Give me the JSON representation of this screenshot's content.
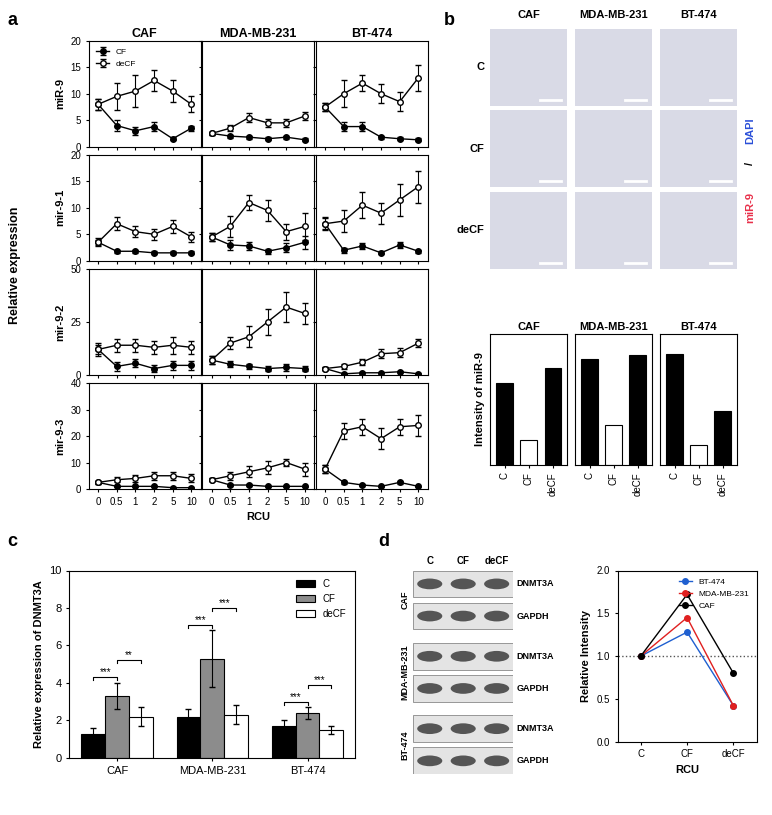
{
  "panel_labels": [
    "a",
    "b",
    "c",
    "d"
  ],
  "panel_a": {
    "ylabel": "Relative expression"
  },
  "images": {
    "columns": [
      "CAF",
      "MDA-MB-231",
      "BT-474"
    ],
    "rows": [
      "C",
      "CF",
      "deCF"
    ],
    "stain_labels": [
      {
        "text": "miR-9",
        "color": "#e8304a"
      },
      {
        "text": "/",
        "color": "#000000"
      },
      {
        "text": "DAPI",
        "color": "#2a4fd8"
      }
    ]
  },
  "blots": {
    "columns": [
      "C",
      "CF",
      "deCF"
    ],
    "rows": [
      "CAF",
      "MDA-MB-231",
      "BT-474"
    ],
    "bands": [
      "DNMT3A",
      "GAPDH"
    ]
  },
  "chart_data": [
    {
      "type": "line",
      "title": "CAF",
      "ylabel": "miR-9",
      "categories": [
        "0",
        "0.5",
        "1",
        "2",
        "5",
        "10"
      ],
      "ylim": [
        0,
        20
      ],
      "yticks": [
        0,
        5,
        10,
        15,
        20
      ],
      "tick_labels": "y",
      "legend": "upper left",
      "series": [
        {
          "name": "CF",
          "color": "#000000",
          "marker": "circle",
          "values": [
            8,
            4,
            3,
            3.8,
            1.5,
            3.5
          ],
          "errors": [
            1,
            1,
            0.8,
            0.8,
            0.3,
            0.5
          ]
        },
        {
          "name": "deCF",
          "color": "#000000",
          "marker": "open circle",
          "values": [
            8,
            9.5,
            10.5,
            12.5,
            10.5,
            8
          ],
          "errors": [
            1,
            2.5,
            3,
            2,
            2,
            1.5
          ]
        }
      ]
    },
    {
      "type": "line",
      "title": "MDA-MB-231",
      "categories": [
        "0",
        "0.5",
        "1",
        "2",
        "5",
        "10"
      ],
      "ylim": [
        0,
        20
      ],
      "yticks": [
        0,
        5,
        10,
        15,
        20
      ],
      "tick_labels": false,
      "series": [
        {
          "name": "CF",
          "color": "#000000",
          "marker": "circle",
          "values": [
            2.5,
            2,
            1.8,
            1.5,
            1.8,
            1.3
          ],
          "errors": [
            0.3,
            0.3,
            0.3,
            0.3,
            0.3,
            0.3
          ]
        },
        {
          "name": "deCF",
          "color": "#000000",
          "marker": "open circle",
          "values": [
            2.5,
            3.5,
            5.5,
            4.5,
            4.5,
            5.8
          ],
          "errors": [
            0.3,
            0.6,
            0.8,
            0.8,
            0.8,
            0.8
          ]
        }
      ]
    },
    {
      "type": "line",
      "title": "BT-474",
      "categories": [
        "0",
        "0.5",
        "1",
        "2",
        "5",
        "10"
      ],
      "ylim": [
        0,
        20
      ],
      "yticks": [
        0,
        5,
        10,
        15,
        20
      ],
      "tick_labels": false,
      "series": [
        {
          "name": "CF",
          "color": "#000000",
          "marker": "circle",
          "values": [
            7.5,
            3.8,
            3.8,
            1.8,
            1.5,
            1.3
          ],
          "errors": [
            0.8,
            0.8,
            0.8,
            0.3,
            0.3,
            0.3
          ]
        },
        {
          "name": "deCF",
          "color": "#000000",
          "marker": "open circle",
          "values": [
            7.5,
            10,
            12,
            10,
            8.5,
            13
          ],
          "errors": [
            0.8,
            2.5,
            1.5,
            1.8,
            1.8,
            2.5
          ]
        }
      ]
    },
    {
      "type": "line",
      "ylabel": "mir-9-1",
      "categories": [
        "0",
        "0.5",
        "1",
        "2",
        "5",
        "10"
      ],
      "ylim": [
        0,
        20
      ],
      "yticks": [
        0,
        5,
        10,
        15,
        20
      ],
      "tick_labels": "y",
      "series": [
        {
          "name": "CF",
          "color": "#000000",
          "marker": "circle",
          "values": [
            3.5,
            1.8,
            1.8,
            1.5,
            1.5,
            1.5
          ],
          "errors": [
            0.5,
            0.3,
            0.3,
            0.3,
            0.3,
            0.3
          ]
        },
        {
          "name": "deCF",
          "color": "#000000",
          "marker": "open circle",
          "values": [
            3.5,
            7,
            5.5,
            5,
            6.5,
            4.5
          ],
          "errors": [
            0.8,
            1.2,
            1.0,
            1.0,
            1.2,
            1.0
          ]
        }
      ]
    },
    {
      "type": "line",
      "categories": [
        "0",
        "0.5",
        "1",
        "2",
        "5",
        "10"
      ],
      "ylim": [
        0,
        20
      ],
      "yticks": [
        0,
        5,
        10,
        15,
        20
      ],
      "tick_labels": false,
      "series": [
        {
          "name": "CF",
          "color": "#000000",
          "marker": "circle",
          "values": [
            4.5,
            3,
            2.8,
            1.8,
            2.5,
            3.5
          ],
          "errors": [
            0.8,
            1,
            0.8,
            0.5,
            0.8,
            1.2
          ]
        },
        {
          "name": "deCF",
          "color": "#000000",
          "marker": "open circle",
          "values": [
            4.5,
            6.5,
            11,
            9.5,
            5.5,
            6.5
          ],
          "errors": [
            0.8,
            2,
            1.5,
            2,
            1.5,
            2.5
          ]
        }
      ]
    },
    {
      "type": "line",
      "categories": [
        "0",
        "0.5",
        "1",
        "2",
        "5",
        "10"
      ],
      "ylim": [
        0,
        20
      ],
      "yticks": [
        0,
        5,
        10,
        15,
        20
      ],
      "tick_labels": false,
      "series": [
        {
          "name": "CF",
          "color": "#000000",
          "marker": "circle",
          "values": [
            7,
            2,
            2.8,
            1.5,
            3,
            1.8
          ],
          "errors": [
            1,
            0.5,
            0.5,
            0.3,
            0.5,
            0.3
          ]
        },
        {
          "name": "deCF",
          "color": "#000000",
          "marker": "open circle",
          "values": [
            7,
            7.5,
            10.5,
            9,
            11.5,
            14
          ],
          "errors": [
            1.2,
            2,
            2.5,
            2,
            3,
            3
          ]
        }
      ]
    },
    {
      "type": "line",
      "ylabel": "mir-9-2",
      "categories": [
        "0",
        "0.5",
        "1",
        "2",
        "5",
        "10"
      ],
      "ylim": [
        0,
        50
      ],
      "yticks": [
        0,
        25,
        50
      ],
      "tick_labels": "y",
      "series": [
        {
          "name": "CF",
          "color": "#000000",
          "marker": "circle",
          "values": [
            12,
            4,
            5.5,
            3,
            4.5,
            4.5
          ],
          "errors": [
            2,
            2,
            2,
            1.5,
            2,
            2
          ]
        },
        {
          "name": "deCF",
          "color": "#000000",
          "marker": "open circle",
          "values": [
            12,
            14,
            14,
            13,
            14,
            13
          ],
          "errors": [
            3,
            3,
            3,
            3,
            4,
            3
          ]
        }
      ]
    },
    {
      "type": "line",
      "categories": [
        "0",
        "0.5",
        "1",
        "2",
        "5",
        "10"
      ],
      "ylim": [
        0,
        50
      ],
      "yticks": [
        0,
        25,
        50
      ],
      "tick_labels": false,
      "series": [
        {
          "name": "CF",
          "color": "#000000",
          "marker": "circle",
          "values": [
            7,
            5,
            4,
            3,
            3.5,
            3
          ],
          "errors": [
            2,
            1.5,
            1,
            1,
            1.5,
            1
          ]
        },
        {
          "name": "deCF",
          "color": "#000000",
          "marker": "open circle",
          "values": [
            7,
            15,
            18,
            25,
            32,
            29
          ],
          "errors": [
            2,
            3,
            5,
            6,
            7,
            5
          ]
        }
      ]
    },
    {
      "type": "line",
      "categories": [
        "0",
        "0.5",
        "1",
        "2",
        "5",
        "10"
      ],
      "ylim": [
        0,
        50
      ],
      "yticks": [
        0,
        25,
        50
      ],
      "tick_labels": false,
      "series": [
        {
          "name": "CF",
          "color": "#000000",
          "marker": "circle",
          "values": [
            3,
            0.5,
            1,
            1,
            1.5,
            0.5
          ],
          "errors": [
            0.5,
            0.3,
            0.3,
            0.3,
            0.3,
            0.3
          ]
        },
        {
          "name": "deCF",
          "color": "#000000",
          "marker": "open circle",
          "values": [
            3,
            4,
            6,
            10,
            10.5,
            15
          ],
          "errors": [
            0.5,
            1,
            1.5,
            2,
            2,
            2
          ]
        }
      ]
    },
    {
      "type": "line",
      "ylabel": "mir-9-3",
      "categories": [
        "0",
        "0.5",
        "1",
        "2",
        "5",
        "10"
      ],
      "ylim": [
        0,
        40
      ],
      "yticks": [
        0,
        10,
        20,
        30,
        40
      ],
      "tick_labels": true,
      "series": [
        {
          "name": "CF",
          "color": "#000000",
          "marker": "circle",
          "values": [
            2.5,
            1,
            1,
            1,
            0.5,
            0.5
          ],
          "errors": [
            0.5,
            0.3,
            0.3,
            0.3,
            0.2,
            0.2
          ]
        },
        {
          "name": "deCF",
          "color": "#000000",
          "marker": "open circle",
          "values": [
            2.5,
            3.5,
            4,
            5,
            5,
            4
          ],
          "errors": [
            0.5,
            1,
            1.2,
            1.5,
            1.5,
            1.5
          ]
        }
      ]
    },
    {
      "type": "line",
      "xlabel": "RCU",
      "categories": [
        "0",
        "0.5",
        "1",
        "2",
        "5",
        "10"
      ],
      "ylim": [
        0,
        40
      ],
      "yticks": [
        0,
        10,
        20,
        30,
        40
      ],
      "tick_labels": "x",
      "series": [
        {
          "name": "CF",
          "color": "#000000",
          "marker": "circle",
          "values": [
            3.5,
            1.5,
            1.5,
            1,
            1,
            1
          ],
          "errors": [
            0.5,
            0.3,
            0.3,
            0.3,
            0.3,
            0.3
          ]
        },
        {
          "name": "deCF",
          "color": "#000000",
          "marker": "open circle",
          "values": [
            3.5,
            5,
            6.5,
            8,
            10,
            7.5
          ],
          "errors": [
            0.5,
            1.5,
            2,
            2.5,
            1.5,
            2.5
          ]
        }
      ]
    },
    {
      "type": "line",
      "categories": [
        "0",
        "0.5",
        "1",
        "2",
        "5",
        "10"
      ],
      "ylim": [
        0,
        40
      ],
      "yticks": [
        0,
        10,
        20,
        30,
        40
      ],
      "tick_labels": "x",
      "series": [
        {
          "name": "CF",
          "color": "#000000",
          "marker": "circle",
          "values": [
            7.5,
            2.5,
            1.5,
            1,
            2.5,
            1
          ],
          "errors": [
            1.5,
            0.5,
            0.3,
            0.3,
            0.5,
            0.3
          ]
        },
        {
          "name": "deCF",
          "color": "#000000",
          "marker": "open circle",
          "values": [
            7.5,
            22,
            23.5,
            19,
            23.5,
            24
          ],
          "errors": [
            1.5,
            3,
            3,
            4,
            3,
            4
          ]
        }
      ]
    },
    {
      "type": "bar",
      "title": "CAF",
      "ylabel": "Intensity of miR-9",
      "categories": [
        "C",
        "CF",
        "deCF"
      ],
      "values": [
        5.0,
        1.5,
        5.9
      ],
      "colors": [
        "#000000",
        "#ffffff",
        "#000000"
      ],
      "ylim": [
        0,
        8
      ],
      "yticks": [],
      "tick_labels": "x"
    },
    {
      "type": "bar",
      "title": "MDA-MB-231",
      "categories": [
        "C",
        "CF",
        "deCF"
      ],
      "values": [
        6.5,
        2.4,
        6.7
      ],
      "colors": [
        "#000000",
        "#ffffff",
        "#000000"
      ],
      "ylim": [
        0,
        8
      ],
      "yticks": [],
      "tick_labels": "x"
    },
    {
      "type": "bar",
      "title": "BT-474",
      "categories": [
        "C",
        "CF",
        "deCF"
      ],
      "values": [
        6.8,
        1.2,
        3.3
      ],
      "colors": [
        "#000000",
        "#ffffff",
        "#000000"
      ],
      "ylim": [
        0,
        8
      ],
      "yticks": [],
      "tick_labels": "x"
    },
    {
      "type": "grouped_bar",
      "ylabel": "Relative expression of DNMT3A",
      "categories": [
        "CAF",
        "MDA-MB-231",
        "BT-474"
      ],
      "ylim": [
        0,
        10
      ],
      "yticks": [
        0,
        2,
        4,
        6,
        8,
        10
      ],
      "legend": "upper right",
      "series": [
        {
          "name": "C",
          "color": "#000000",
          "values": [
            1.3,
            2.2,
            1.7
          ],
          "errors": [
            0.3,
            0.4,
            0.3
          ]
        },
        {
          "name": "CF",
          "color": "#8c8c8c",
          "values": [
            3.3,
            5.3,
            2.4
          ],
          "errors": [
            0.7,
            1.5,
            0.3
          ]
        },
        {
          "name": "deCF",
          "color": "#ffffff",
          "values": [
            2.2,
            2.3,
            1.5
          ],
          "errors": [
            0.5,
            0.5,
            0.2
          ]
        }
      ],
      "significance": [
        {
          "category": "CAF",
          "pair": [
            "C",
            "CF"
          ],
          "label": "***"
        },
        {
          "category": "CAF",
          "pair": [
            "CF",
            "deCF"
          ],
          "label": "**"
        },
        {
          "category": "MDA-MB-231",
          "pair": [
            "C",
            "CF"
          ],
          "label": "***"
        },
        {
          "category": "MDA-MB-231",
          "pair": [
            "CF",
            "deCF"
          ],
          "label": "***"
        },
        {
          "category": "BT-474",
          "pair": [
            "C",
            "CF"
          ],
          "label": "***"
        },
        {
          "category": "BT-474",
          "pair": [
            "CF",
            "deCF"
          ],
          "label": "***"
        }
      ]
    },
    {
      "type": "line",
      "xlabel": "RCU",
      "ylabel": "Relative Intensity",
      "categories": [
        "C",
        "CF",
        "deCF"
      ],
      "ylim": [
        0,
        2
      ],
      "yticks": [
        {
          "value": 0,
          "label": "0.0"
        },
        {
          "value": 0.5,
          "label": "0.5"
        },
        {
          "value": 1,
          "label": "1.0"
        },
        {
          "value": 1.5,
          "label": "1.5"
        },
        {
          "value": 2,
          "label": "2.0"
        }
      ],
      "legend": "upper right",
      "hline": 1.0,
      "series": [
        {
          "name": "BT-474",
          "color": "#1f5fd0",
          "marker": "circle",
          "values": [
            1,
            1.28,
            0.42
          ]
        },
        {
          "name": "MDA-MB-231",
          "color": "#e02020",
          "marker": "circle",
          "values": [
            1,
            1.45,
            0.42
          ]
        },
        {
          "name": "CAF",
          "color": "#000000",
          "marker": "circle",
          "values": [
            1,
            1.72,
            0.8
          ]
        }
      ]
    }
  ]
}
